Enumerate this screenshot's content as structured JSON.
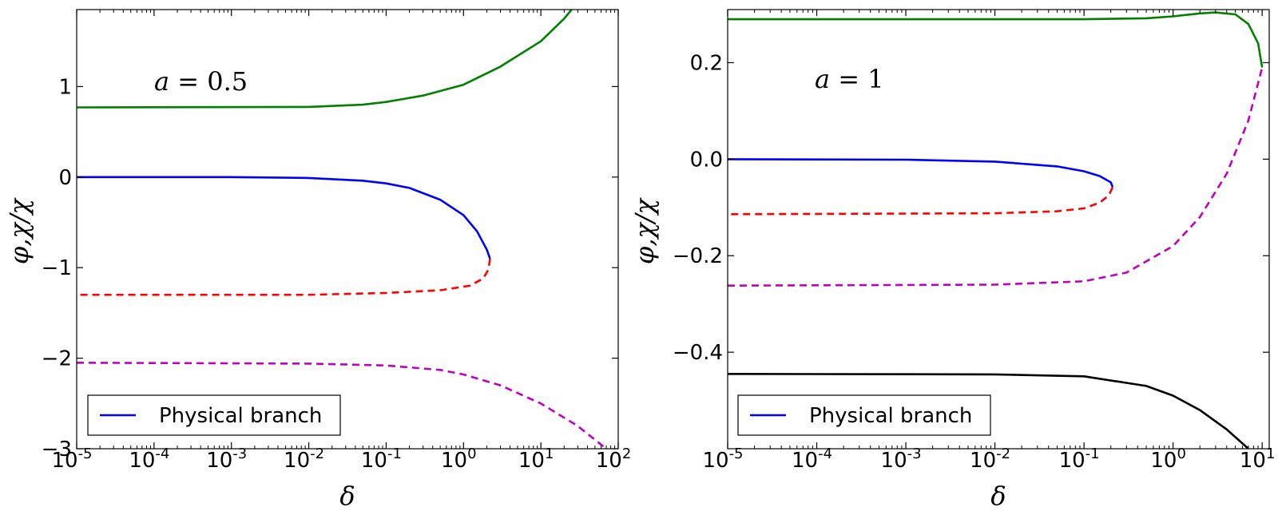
{
  "chart_data": [
    {
      "type": "line",
      "xscale": "log",
      "xlabel": "δ",
      "ylabel": "φ,χ/χ",
      "xlim": [
        1e-05,
        100
      ],
      "ylim": [
        -3,
        1.85
      ],
      "annotation": "a = 0.5",
      "annotation_var": "a",
      "annotation_eq": " = 0.5",
      "xtick_exponents": [
        "-5",
        "-4",
        "-3",
        "-2",
        "-1",
        "0",
        "1",
        "2"
      ],
      "xtick_base": "10",
      "yticks": [
        {
          "value": -3,
          "label": "−3"
        },
        {
          "value": -2,
          "label": "−2"
        },
        {
          "value": -1,
          "label": "−1"
        },
        {
          "value": 0,
          "label": "0"
        },
        {
          "value": 1,
          "label": "1"
        }
      ],
      "legend": {
        "label": "Physical branch",
        "color": "#0000ff",
        "position": "lower-left"
      },
      "series": [
        {
          "name": "green",
          "color": "#008000",
          "dashed": false,
          "points": [
            [
              1e-05,
              0.77
            ],
            [
              0.01,
              0.775
            ],
            [
              0.05,
              0.8
            ],
            [
              0.1,
              0.83
            ],
            [
              0.3,
              0.9
            ],
            [
              1,
              1.02
            ],
            [
              3,
              1.22
            ],
            [
              10,
              1.5
            ],
            [
              20,
              1.75
            ],
            [
              25,
              1.85
            ]
          ]
        },
        {
          "name": "Physical branch",
          "color": "#0000ff",
          "dashed": false,
          "points": [
            [
              1e-05,
              0.0
            ],
            [
              0.001,
              0.0
            ],
            [
              0.01,
              -0.01
            ],
            [
              0.05,
              -0.04
            ],
            [
              0.1,
              -0.07
            ],
            [
              0.2,
              -0.12
            ],
            [
              0.5,
              -0.25
            ],
            [
              1,
              -0.42
            ],
            [
              1.5,
              -0.6
            ],
            [
              2,
              -0.8
            ],
            [
              2.2,
              -0.9
            ]
          ]
        },
        {
          "name": "red",
          "color": "#ff0000",
          "dashed": true,
          "points": [
            [
              2.2,
              -0.9
            ],
            [
              2.1,
              -1.02
            ],
            [
              1.8,
              -1.12
            ],
            [
              1.2,
              -1.2
            ],
            [
              0.5,
              -1.25
            ],
            [
              0.1,
              -1.28
            ],
            [
              0.01,
              -1.3
            ],
            [
              1e-05,
              -1.3
            ]
          ]
        },
        {
          "name": "magenta",
          "color": "#bf00bf",
          "dashed": true,
          "points": [
            [
              1e-05,
              -2.05
            ],
            [
              0.01,
              -2.06
            ],
            [
              0.1,
              -2.08
            ],
            [
              0.5,
              -2.13
            ],
            [
              1,
              -2.18
            ],
            [
              3,
              -2.3
            ],
            [
              10,
              -2.5
            ],
            [
              30,
              -2.75
            ],
            [
              70,
              -3.0
            ]
          ]
        }
      ]
    },
    {
      "type": "line",
      "xscale": "log",
      "xlabel": "δ",
      "ylabel": "φ,χ/χ",
      "xlim": [
        1e-05,
        12
      ],
      "ylim": [
        -0.6,
        0.31
      ],
      "annotation": "a = 1",
      "annotation_var": "a",
      "annotation_eq": " = 1",
      "xtick_exponents": [
        "-5",
        "-4",
        "-3",
        "-2",
        "-1",
        "0",
        "1"
      ],
      "xtick_base": "10",
      "yticks": [
        {
          "value": -0.4,
          "label": "−0.4"
        },
        {
          "value": -0.2,
          "label": "−0.2"
        },
        {
          "value": 0.0,
          "label": "0.0"
        },
        {
          "value": 0.2,
          "label": "0.2"
        }
      ],
      "legend": {
        "label": "Physical branch",
        "color": "#0000ff",
        "position": "lower-left"
      },
      "series": [
        {
          "name": "green",
          "color": "#008000",
          "dashed": false,
          "points": [
            [
              1e-05,
              0.29
            ],
            [
              0.1,
              0.29
            ],
            [
              0.5,
              0.292
            ],
            [
              1,
              0.296
            ],
            [
              2,
              0.302
            ],
            [
              3,
              0.304
            ],
            [
              5,
              0.3
            ],
            [
              7,
              0.28
            ],
            [
              9,
              0.24
            ],
            [
              10,
              0.19
            ]
          ]
        },
        {
          "name": "Physical branch",
          "color": "#0000ff",
          "dashed": false,
          "points": [
            [
              1e-05,
              0.0
            ],
            [
              0.001,
              -0.001
            ],
            [
              0.01,
              -0.005
            ],
            [
              0.05,
              -0.015
            ],
            [
              0.1,
              -0.025
            ],
            [
              0.15,
              -0.035
            ],
            [
              0.2,
              -0.048
            ],
            [
              0.21,
              -0.058
            ]
          ]
        },
        {
          "name": "red",
          "color": "#ff0000",
          "dashed": true,
          "points": [
            [
              0.21,
              -0.058
            ],
            [
              0.19,
              -0.075
            ],
            [
              0.15,
              -0.09
            ],
            [
              0.1,
              -0.102
            ],
            [
              0.05,
              -0.108
            ],
            [
              0.01,
              -0.112
            ],
            [
              1e-05,
              -0.114
            ]
          ]
        },
        {
          "name": "magenta",
          "color": "#bf00bf",
          "dashed": true,
          "points": [
            [
              1e-05,
              -0.262
            ],
            [
              0.01,
              -0.26
            ],
            [
              0.1,
              -0.253
            ],
            [
              0.3,
              -0.235
            ],
            [
              1,
              -0.18
            ],
            [
              2,
              -0.12
            ],
            [
              4,
              -0.03
            ],
            [
              7,
              0.08
            ],
            [
              10,
              0.19
            ]
          ]
        },
        {
          "name": "black",
          "color": "#000000",
          "dashed": false,
          "points": [
            [
              1e-05,
              -0.445
            ],
            [
              0.01,
              -0.446
            ],
            [
              0.1,
              -0.45
            ],
            [
              0.5,
              -0.47
            ],
            [
              1,
              -0.49
            ],
            [
              2,
              -0.52
            ],
            [
              4,
              -0.56
            ],
            [
              7,
              -0.6
            ]
          ]
        }
      ]
    }
  ]
}
